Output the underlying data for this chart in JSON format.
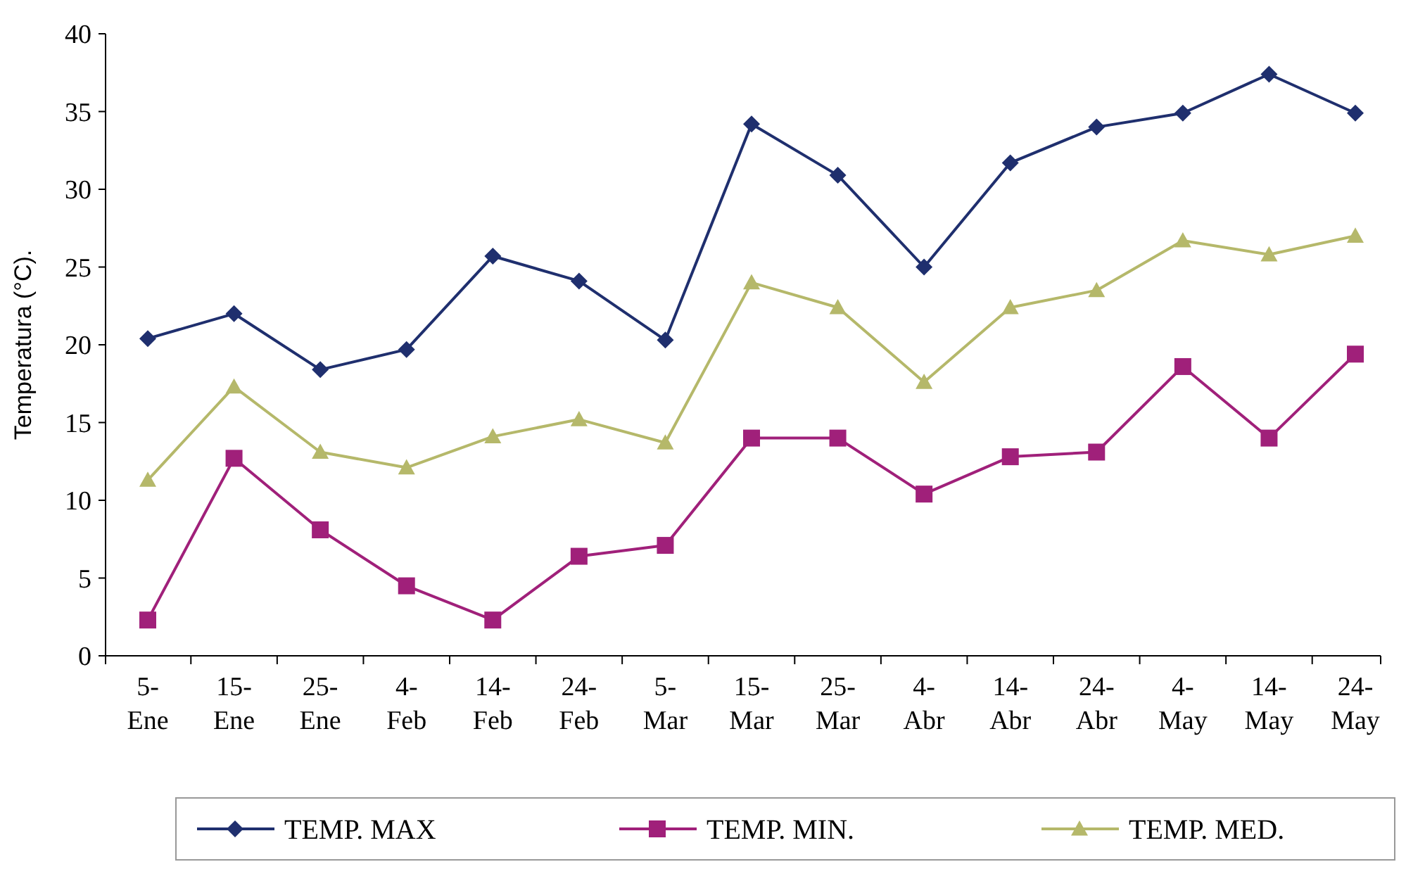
{
  "chart_data": {
    "type": "line",
    "ylabel": "Temperatura (°C).",
    "categories": [
      "5-\nEne",
      "15-\nEne",
      "25-\nEne",
      "4-\nFeb",
      "14-\nFeb",
      "24-\nFeb",
      "5-\nMar",
      "15-\nMar",
      "25-\nMar",
      "4-\nAbr",
      "14-\nAbr",
      "24-\nAbr",
      "4-\nMay",
      "14-\nMay",
      "24-\nMay"
    ],
    "ylim": [
      0,
      40
    ],
    "yticks": [
      0,
      5,
      10,
      15,
      20,
      25,
      30,
      35,
      40
    ],
    "grid": false,
    "legend": "bottom",
    "line_style": "solid",
    "series": [
      {
        "name": "TEMP. MAX",
        "color": "#1f2f6e",
        "marker": "diamond",
        "values": [
          20.4,
          22,
          18.4,
          19.7,
          25.7,
          24.1,
          20.3,
          34.2,
          30.9,
          25,
          31.7,
          34,
          34.9,
          37.4,
          34.9
        ]
      },
      {
        "name": "TEMP. MIN.",
        "color": "#a0207a",
        "marker": "square",
        "values": [
          2.3,
          12.7,
          8.1,
          4.5,
          2.3,
          6.4,
          7.1,
          14,
          14,
          10.4,
          12.8,
          13.1,
          18.6,
          14,
          19.4
        ]
      },
      {
        "name": "TEMP. MED.",
        "color": "#b5b86a",
        "marker": "triangle",
        "values": [
          11.3,
          17.3,
          13.1,
          12.1,
          14.1,
          15.2,
          13.7,
          24,
          22.4,
          17.6,
          22.4,
          23.5,
          26.7,
          25.8,
          27
        ]
      }
    ]
  }
}
